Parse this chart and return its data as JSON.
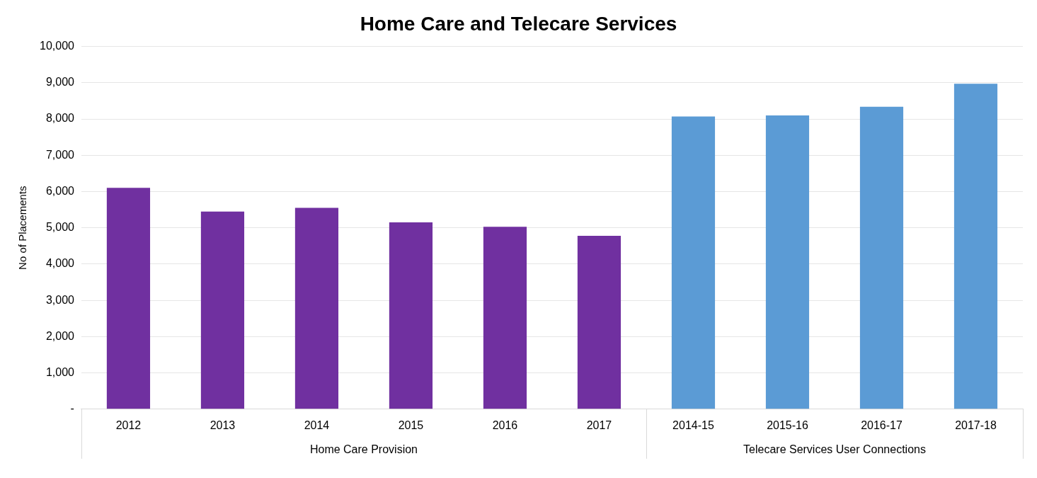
{
  "chart_data": {
    "type": "bar",
    "title": "Home Care and Telecare Services",
    "ylabel": "No of Placements",
    "categories": [
      "2012",
      "2013",
      "2014",
      "2015",
      "2016",
      "2017",
      "2014-15",
      "2015-16",
      "2016-17",
      "2017-18"
    ],
    "values": [
      6100,
      5450,
      5550,
      5150,
      5030,
      4780,
      8070,
      8100,
      8340,
      8970
    ],
    "colors": [
      "#7030a0",
      "#7030a0",
      "#7030a0",
      "#7030a0",
      "#7030a0",
      "#7030a0",
      "#5b9bd5",
      "#5b9bd5",
      "#5b9bd5",
      "#5b9bd5"
    ],
    "annotations": [
      "Home Care Provision",
      "Telecare Services User Connections"
    ],
    "ylim": [
      0,
      10000
    ],
    "yticks": [
      {
        "value": 0,
        "label": "-"
      },
      {
        "value": 1000,
        "label": "1,000"
      },
      {
        "value": 2000,
        "label": "2,000"
      },
      {
        "value": 3000,
        "label": "3,000"
      },
      {
        "value": 4000,
        "label": "4,000"
      },
      {
        "value": 5000,
        "label": "5,000"
      },
      {
        "value": 6000,
        "label": "6,000"
      },
      {
        "value": 7000,
        "label": "7,000"
      },
      {
        "value": 8000,
        "label": "8,000"
      },
      {
        "value": 9000,
        "label": "9,000"
      },
      {
        "value": 10000,
        "label": "10,000"
      }
    ],
    "grid": "y",
    "legend": false
  }
}
